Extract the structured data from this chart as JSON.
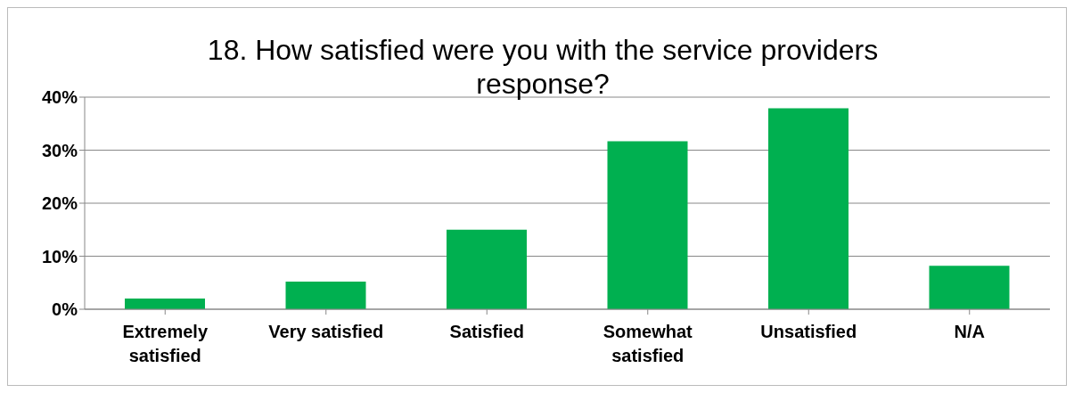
{
  "chart_data": {
    "type": "bar",
    "title": "18. How satisfied were you with the service providers response?",
    "categories": [
      "Extremely satisfied",
      "Very satisfied",
      "Satisfied",
      "Somewhat satisfied",
      "Unsatisfied",
      "N/A"
    ],
    "values": [
      2,
      5.2,
      15,
      31.7,
      37.9,
      8.2
    ],
    "color": "#00b050",
    "ylim": [
      0,
      40
    ],
    "yticks": [
      {
        "value": 0,
        "label": "0%"
      },
      {
        "value": 10,
        "label": "10%"
      },
      {
        "value": 20,
        "label": "20%"
      },
      {
        "value": 30,
        "label": "30%"
      },
      {
        "value": 40,
        "label": "40%"
      }
    ],
    "grid": "y"
  }
}
